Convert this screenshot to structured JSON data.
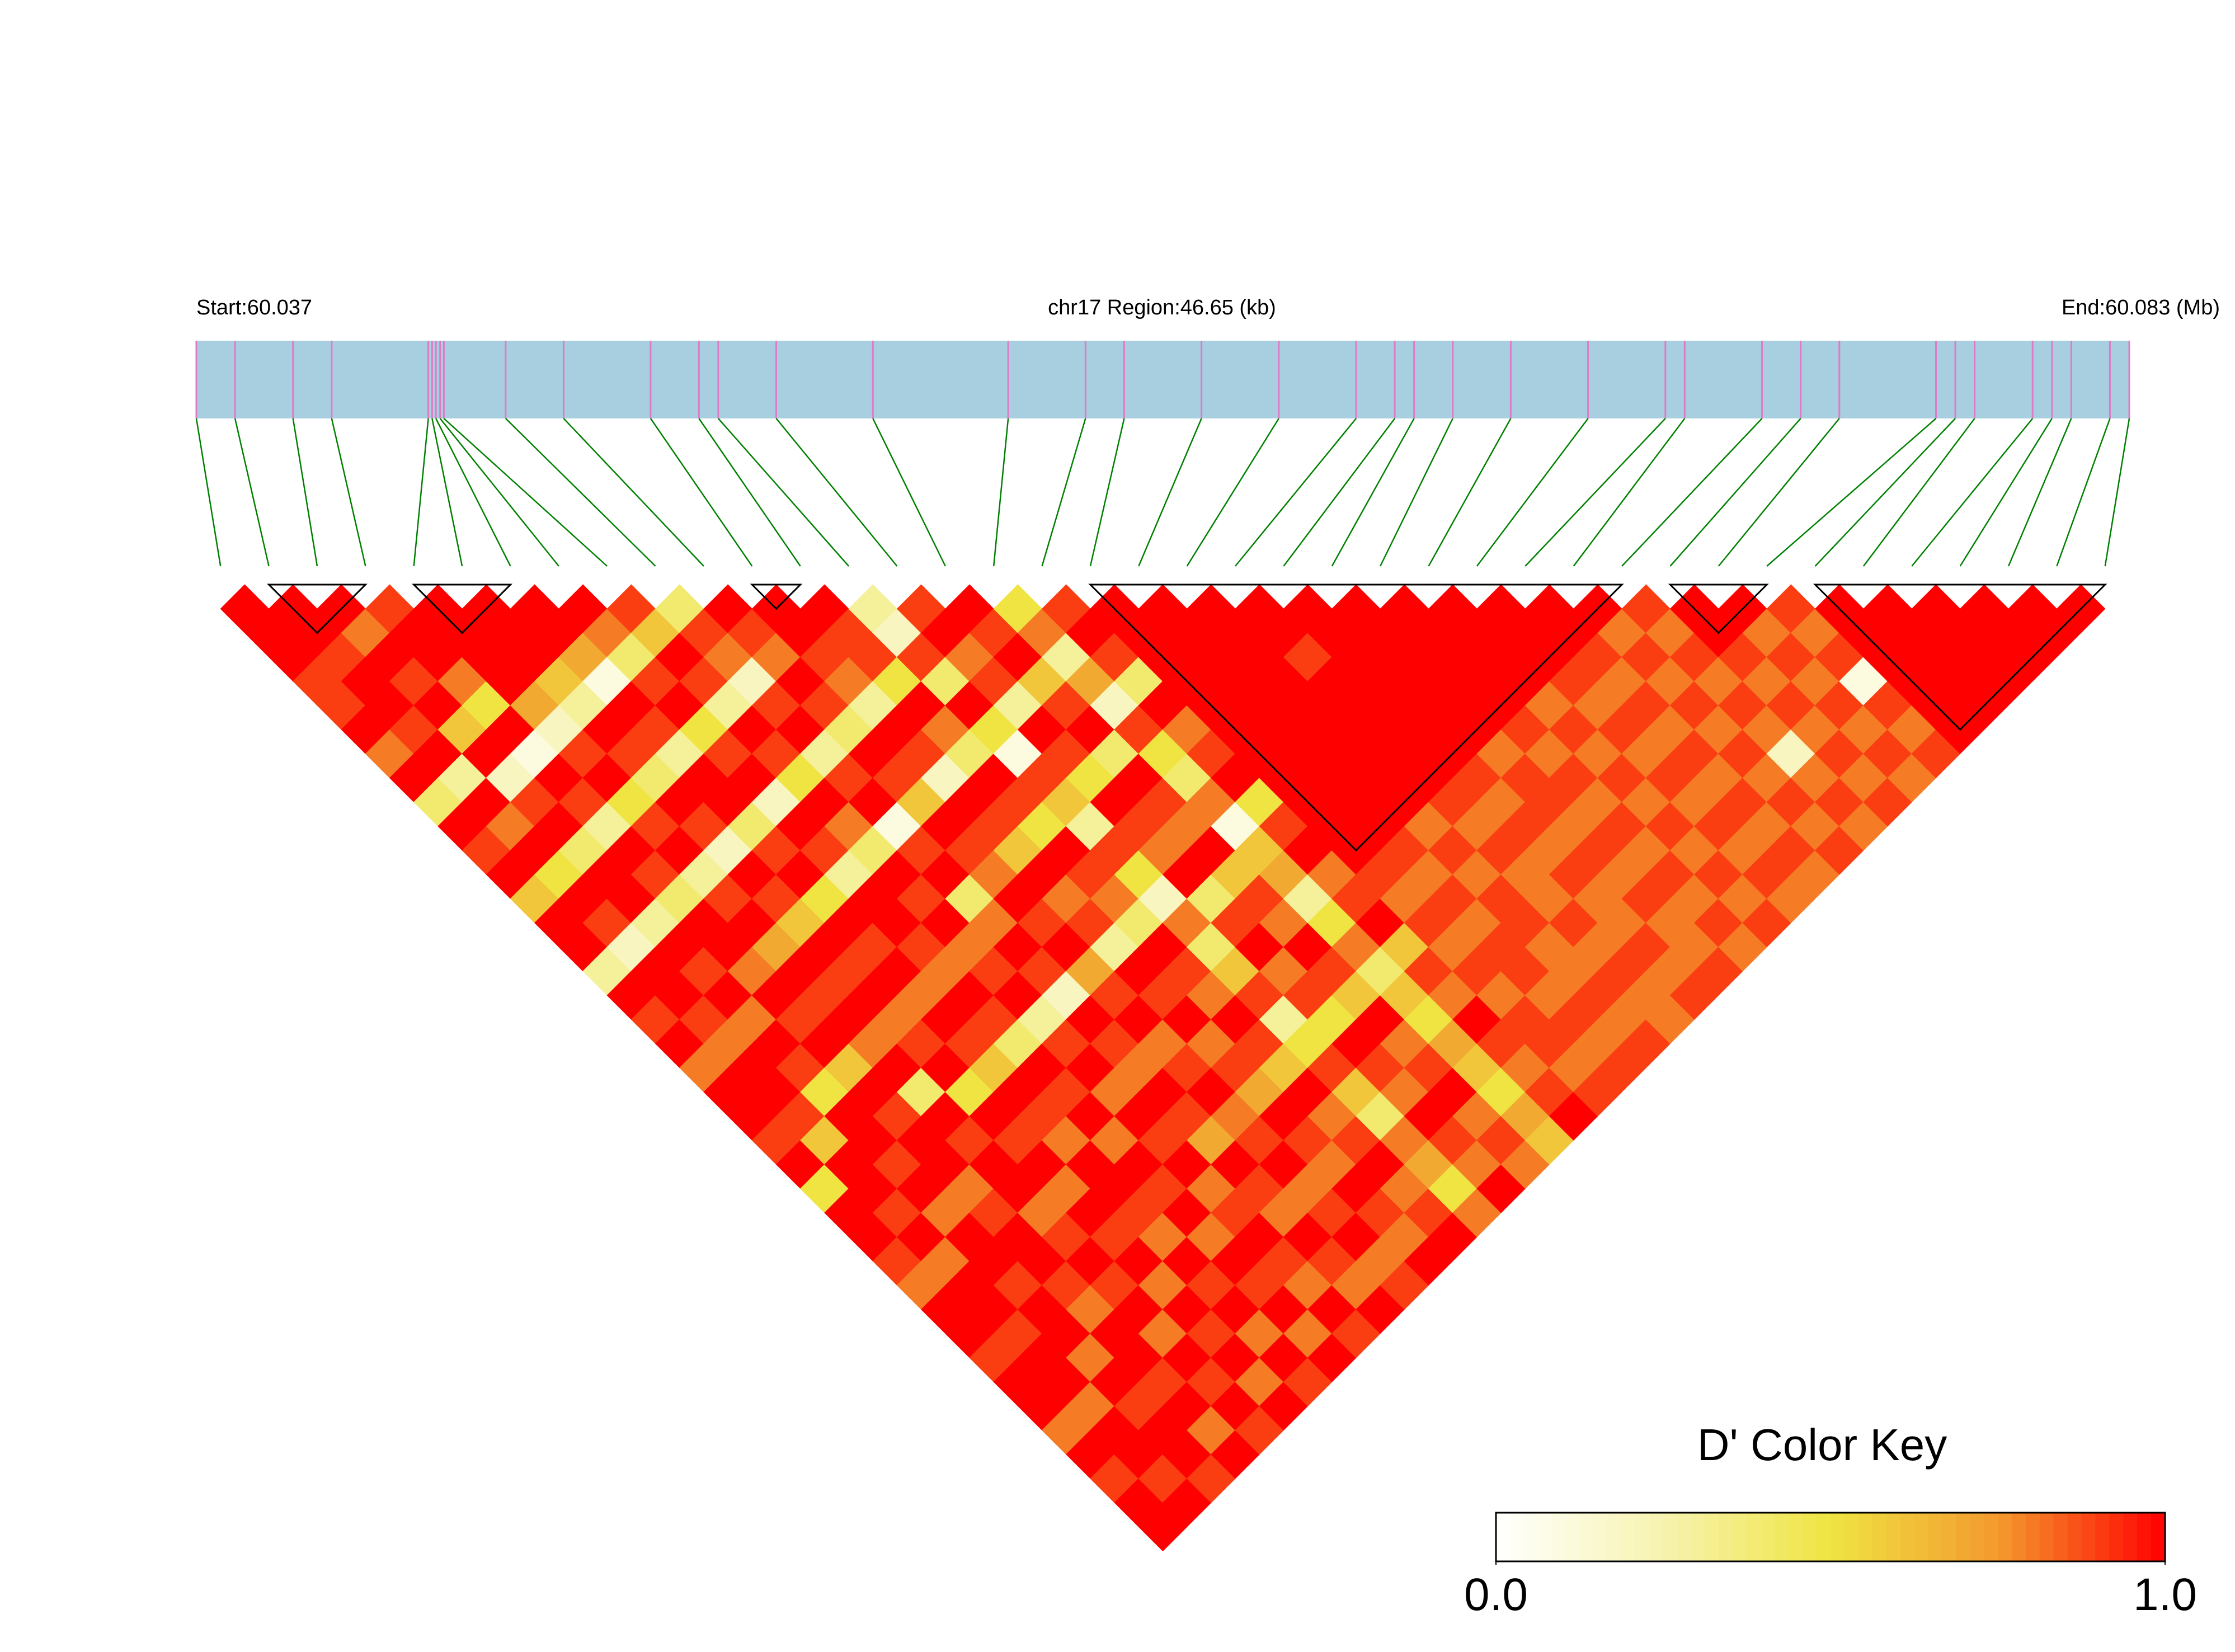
{
  "chart_data": {
    "type": "ld_heatmap",
    "start_label": "Start:60.037",
    "region_label": "chr17 Region:46.65 (kb)",
    "end_label": "End:60.083 (Mb)",
    "xlim": [
      60.037,
      60.083
    ],
    "snp_positions": [
      60.037,
      60.03792,
      60.0393,
      60.04022,
      60.04252,
      60.04261,
      60.0427,
      60.0428,
      60.04289,
      60.04436,
      60.04574,
      60.04781,
      60.04896,
      60.04942,
      60.0508,
      60.0531,
      60.05632,
      60.05816,
      60.05908,
      60.06092,
      60.06276,
      60.0646,
      60.06552,
      60.06598,
      60.0669,
      60.06828,
      60.07012,
      60.07196,
      60.07242,
      60.07426,
      60.07518,
      60.0761,
      60.0784,
      60.07886,
      60.07932,
      60.0807,
      60.08116,
      60.08162,
      60.08254,
      60.083
    ],
    "ld_matrix": [
      [
        1,
        1,
        1,
        0.9,
        0.9,
        1,
        0.8,
        1,
        0.4,
        1,
        0.9,
        1,
        0.6,
        1,
        1,
        0.3,
        1,
        0.9,
        1,
        0.8,
        1,
        1,
        0.9,
        1,
        0.5,
        1,
        1,
        0.9,
        0.8,
        1,
        1,
        0.9,
        1,
        1,
        0.8,
        1,
        0.9,
        1,
        1
      ],
      [
        1,
        1,
        0.9,
        1,
        1,
        0.9,
        1,
        0.3,
        1,
        0.8,
        1,
        0.5,
        1,
        0.9,
        0.2,
        1,
        1,
        0.9,
        0.8,
        1,
        1,
        0.9,
        0.6,
        1,
        1,
        0.9,
        1,
        0.8,
        1,
        1,
        0.9,
        1,
        1,
        0.8,
        1,
        1,
        0.9,
        1
      ],
      [
        1,
        0.8,
        1,
        0.9,
        1,
        0.6,
        1,
        0.2,
        0.9,
        1,
        0.4,
        1,
        1,
        0.3,
        1,
        0.9,
        1,
        0.8,
        1,
        0.9,
        0.5,
        1,
        1,
        0.9,
        1,
        0.8,
        1,
        1,
        0.9,
        1,
        1,
        0.8,
        1,
        0.9,
        1,
        1,
        0.9
      ],
      [
        0.9,
        1,
        1,
        0.8,
        0.5,
        1,
        0.1,
        1,
        0.9,
        0.3,
        1,
        0.9,
        0.4,
        1,
        1,
        0.8,
        1,
        0.9,
        1,
        0.6,
        1,
        0.9,
        1,
        1,
        0.8,
        0.9,
        1,
        1,
        0.9,
        0.8,
        1,
        1,
        0.9,
        1,
        0.8,
        1
      ],
      [
        1,
        1,
        1,
        1,
        0.7,
        0.2,
        0.9,
        1,
        0.5,
        0.9,
        1,
        0.3,
        0.9,
        1,
        0.7,
        1,
        0.9,
        1,
        0.8,
        1,
        0.4,
        1,
        0.9,
        1,
        1,
        0.8,
        0.9,
        1,
        0.9,
        1,
        0.8,
        1,
        0.9,
        1,
        0.9
      ],
      [
        1,
        1,
        1,
        0.6,
        0.3,
        1,
        0.9,
        0.4,
        1,
        0.9,
        0.2,
        1,
        0.9,
        0.6,
        1,
        0.9,
        1,
        0.8,
        0.9,
        1,
        0.5,
        1,
        0.9,
        1,
        0.8,
        1,
        0.9,
        1,
        0.8,
        1,
        0.9,
        1,
        0.8,
        1
      ],
      [
        1,
        1,
        0.7,
        0.1,
        1,
        0.9,
        0.3,
        1,
        1,
        0.4,
        0.9,
        1,
        0.5,
        1,
        0.9,
        1,
        0.8,
        1,
        0.9,
        0.6,
        1,
        0.9,
        0.8,
        1,
        1,
        0.9,
        0.8,
        1,
        0.9,
        1,
        0.8,
        1,
        0.9
      ],
      [
        1,
        0.8,
        0.4,
        0.9,
        1,
        0.5,
        0.9,
        1,
        0.2,
        1,
        0.9,
        0.3,
        1,
        1,
        0.9,
        0.8,
        1,
        0.9,
        0.4,
        1,
        0.9,
        1,
        0.8,
        1,
        0.9,
        1,
        0.8,
        1,
        0.9,
        1,
        0.8,
        1
      ],
      [
        0.9,
        0.6,
        1,
        0.9,
        0.3,
        1,
        0.9,
        0.5,
        1,
        0.8,
        0.4,
        1,
        0.9,
        1,
        0.8,
        0.9,
        1,
        0.3,
        0.9,
        1,
        0.8,
        1,
        0.9,
        1,
        0.8,
        0.9,
        1,
        0.9,
        0.8,
        1,
        0.9
      ],
      [
        0.4,
        0.9,
        0.8,
        0.2,
        0.9,
        1,
        0.3,
        0.9,
        1,
        0.1,
        0.9,
        1,
        0.4,
        0.8,
        1,
        0.9,
        0.2,
        1,
        0.9,
        0.8,
        1,
        0.9,
        0.7,
        1,
        0.9,
        0.8,
        1,
        0.9,
        0.8,
        1
      ],
      [
        1,
        0.9,
        0.8,
        1,
        0.9,
        0.4,
        1,
        0.9,
        0.6,
        1,
        0.9,
        0.8,
        1,
        0.9,
        1,
        0.7,
        0.9,
        1,
        0.8,
        0.9,
        1,
        0.8,
        0.9,
        1,
        0.8,
        0.9,
        1,
        0.8,
        0.9
      ],
      [
        1,
        1,
        0.9,
        0.8,
        0.3,
        1,
        0.9,
        0.2,
        1,
        0.9,
        0.6,
        1,
        0.8,
        0.9,
        0.3,
        1,
        0.9,
        1,
        0.8,
        0.9,
        0.7,
        1,
        0.9,
        0.8,
        1,
        0.9,
        0.8,
        1
      ],
      [
        1,
        0.9,
        0.9,
        0.5,
        1,
        0.8,
        0.4,
        1,
        0.9,
        0.5,
        1,
        0.9,
        0.8,
        0.4,
        1,
        0.9,
        0.8,
        1,
        0.9,
        0.6,
        1,
        0.8,
        0.9,
        1,
        0.8,
        0.9,
        1
      ],
      [
        0.3,
        0.2,
        0.9,
        0.4,
        1,
        0.5,
        0.1,
        0.9,
        0.6,
        0.3,
        0.9,
        0.5,
        0.2,
        0.8,
        0.4,
        0.6,
        0.9,
        0.3,
        0.5,
        0.9,
        0.6,
        0.4,
        0.8,
        0.7,
        0.5,
        0.8
      ],
      [
        0.9,
        1,
        0.8,
        0.9,
        0.3,
        1,
        0.9,
        0.5,
        1,
        0.9,
        0.8,
        1,
        0.4,
        0.9,
        1,
        0.8,
        0.9,
        0.5,
        1,
        0.9,
        0.8,
        1,
        0.9,
        0.8,
        1
      ],
      [
        1,
        0.9,
        1,
        0.6,
        0.9,
        1,
        0.4,
        1,
        0.9,
        0.8,
        1,
        0.6,
        0.9,
        0.8,
        1,
        0.9,
        0.6,
        1,
        0.8,
        0.9,
        1,
        0.8,
        0.9,
        0.8
      ],
      [
        0.5,
        0.8,
        0.3,
        0.7,
        0.2,
        0.9,
        0.5,
        0.4,
        0.8,
        0.1,
        0.6,
        0.7,
        0.3,
        0.5,
        0.8,
        0.4,
        0.6,
        0.5,
        0.7,
        0.6,
        0.5,
        0.7,
        0.6
      ],
      [
        0.9,
        1,
        0.9,
        0.4,
        1,
        0.8,
        0.9,
        1,
        0.5,
        0.9,
        1,
        0.8,
        0.9,
        1,
        0.6,
        0.9,
        0.8,
        1,
        0.9,
        0.8,
        0.9,
        1
      ],
      [
        1,
        1,
        1,
        1,
        1,
        1,
        1,
        1,
        1,
        1,
        1,
        0.9,
        0.8,
        0.9,
        0.8,
        0.9,
        0.8,
        0.9,
        0.9,
        0.8,
        0.9
      ],
      [
        1,
        1,
        1,
        1,
        1,
        1,
        1,
        1,
        1,
        1,
        0.9,
        0.8,
        0.9,
        0.8,
        0.9,
        0.9,
        0.8,
        0.9,
        0.8,
        0.9
      ],
      [
        1,
        1,
        1,
        1,
        1,
        1,
        1,
        1,
        1,
        0.8,
        0.9,
        0.8,
        0.9,
        0.9,
        0.8,
        0.8,
        0.9,
        0.8,
        0.9
      ],
      [
        1,
        1,
        0.9,
        1,
        1,
        1,
        1,
        1,
        0.9,
        0.8,
        0.9,
        0.8,
        0.8,
        0.9,
        0.8,
        0.9,
        0.8,
        0.8
      ],
      [
        1,
        1,
        1,
        1,
        1,
        1,
        1,
        0.9,
        0.8,
        0.9,
        0.8,
        0.9,
        0.8,
        0.8,
        0.9,
        0.8,
        0.9
      ],
      [
        1,
        1,
        1,
        1,
        1,
        1,
        0.8,
        0.9,
        0.9,
        0.8,
        0.9,
        0.8,
        0.9,
        0.8,
        0.8,
        0.9
      ],
      [
        1,
        1,
        1,
        1,
        1,
        0.9,
        0.8,
        0.9,
        0.8,
        0.9,
        0.8,
        0.9,
        0.8,
        0.9,
        0.8
      ],
      [
        1,
        1,
        1,
        1,
        0.8,
        0.9,
        0.8,
        0.9,
        0.8,
        0.9,
        0.8,
        0.9,
        0.8,
        0.9
      ],
      [
        1,
        1,
        1,
        0.9,
        0.8,
        0.9,
        0.8,
        0.9,
        0.8,
        0.9,
        0.8,
        0.9,
        0.8
      ],
      [
        1,
        1,
        0.9,
        0.8,
        0.9,
        0.8,
        0.9,
        0.8,
        0.9,
        0.8,
        0.9,
        0.8
      ],
      [
        1,
        0.8,
        0.9,
        0.8,
        0.9,
        0.8,
        0.9,
        0.8,
        0.9,
        0.8,
        0.9
      ],
      [
        0.9,
        0.8,
        0.9,
        0.8,
        0.9,
        0.8,
        0.2,
        0.8,
        0.9,
        0.8
      ],
      [
        1,
        1,
        0.9,
        0.8,
        0.9,
        0.8,
        0.9,
        0.8,
        0.9
      ],
      [
        1,
        0.8,
        0.9,
        0.8,
        0.9,
        0.8,
        0.9,
        0.8
      ],
      [
        0.9,
        0.8,
        0.9,
        0.1,
        0.9,
        0.8,
        0.9
      ],
      [
        1,
        1,
        1,
        1,
        1,
        1
      ],
      [
        1,
        1,
        1,
        1,
        1
      ],
      [
        1,
        1,
        1,
        1
      ],
      [
        1,
        1,
        1
      ],
      [
        1,
        1
      ],
      [
        1
      ]
    ],
    "blocks": [
      [
        1,
        3
      ],
      [
        4,
        6
      ],
      [
        11,
        12
      ],
      [
        18,
        29
      ],
      [
        30,
        32
      ],
      [
        33,
        39
      ]
    ],
    "bar_color": "#a8cfe0",
    "snp_line_color": "#e07ac8",
    "connector_color": "#008000",
    "block_outline_color": "#000000",
    "color_scale": [
      "#ffffff",
      "#f7f3b0",
      "#efe442",
      "#f39a2e",
      "#ff0000"
    ],
    "colorbar_title": "D' Color Key",
    "colorbar_lim": [
      0,
      1
    ],
    "colorbar_ticks": [
      {
        "value": 0,
        "label": "0.0"
      },
      {
        "value": 1,
        "label": "1.0"
      }
    ]
  }
}
